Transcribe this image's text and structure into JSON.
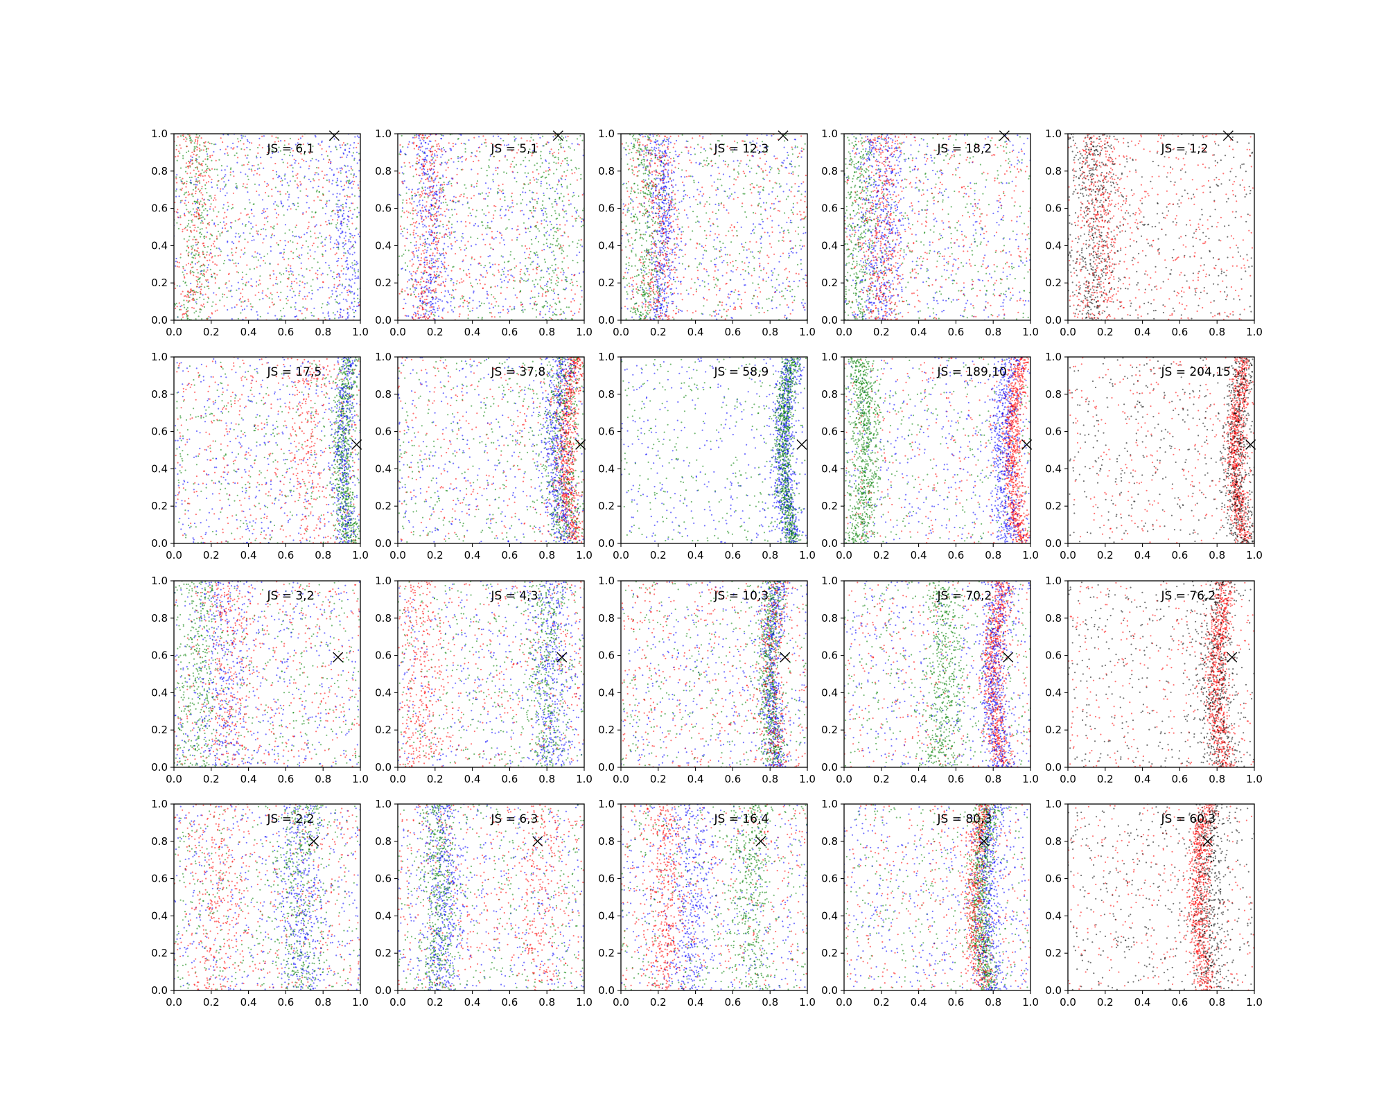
{
  "figure": {
    "colors": {
      "blue": "#0000ff",
      "green": "#008000",
      "red": "#ff0000",
      "black": "#000000",
      "background": "#ffffff"
    },
    "marker": "x"
  },
  "chart_data": {
    "type": "scatter",
    "layout": "4x5 grid of scatter panels",
    "xlim": [
      0,
      1
    ],
    "ylim": [
      0,
      1
    ],
    "x_ticks": [
      "0.0",
      "0.2",
      "0.4",
      "0.6",
      "0.8",
      "1.0"
    ],
    "y_ticks": [
      "0.0",
      "0.2",
      "0.4",
      "0.6",
      "0.8",
      "1.0"
    ],
    "grid": false,
    "legend": "none",
    "panels": [
      {
        "label": "JS = 6,1",
        "marker": [
          0.86,
          0.99
        ],
        "bands": [
          {
            "color": "blue",
            "center": 0.95,
            "spread": 0.05,
            "density": 0.25
          },
          {
            "color": "green",
            "center": 0.1,
            "spread": 0.05,
            "density": 0.25
          },
          {
            "color": "red",
            "center": 0.1,
            "spread": 0.06,
            "density": 0.25
          }
        ]
      },
      {
        "label": "JS = 5,1",
        "marker": [
          0.86,
          0.99
        ],
        "bands": [
          {
            "color": "blue",
            "center": 0.15,
            "spread": 0.05,
            "density": 0.4
          },
          {
            "color": "red",
            "center": 0.15,
            "spread": 0.05,
            "density": 0.35
          },
          {
            "color": "green",
            "center": 0.85,
            "spread": 0.07,
            "density": 0.2
          }
        ]
      },
      {
        "label": "JS = 12,3",
        "marker": [
          0.87,
          0.99
        ],
        "bands": [
          {
            "color": "blue",
            "center": 0.2,
            "spread": 0.04,
            "density": 0.5
          },
          {
            "color": "red",
            "center": 0.18,
            "spread": 0.05,
            "density": 0.35
          },
          {
            "color": "green",
            "center": 0.12,
            "spread": 0.05,
            "density": 0.4
          }
        ]
      },
      {
        "label": "JS = 18,2",
        "marker": [
          0.86,
          0.99
        ],
        "bands": [
          {
            "color": "blue",
            "center": 0.18,
            "spread": 0.06,
            "density": 0.5
          },
          {
            "color": "green",
            "center": 0.05,
            "spread": 0.06,
            "density": 0.45
          },
          {
            "color": "red",
            "center": 0.18,
            "spread": 0.06,
            "density": 0.4
          }
        ]
      },
      {
        "label": "JS = 1,2",
        "marker": [
          0.86,
          0.99
        ],
        "bands": [
          {
            "color": "black",
            "center": 0.12,
            "spread": 0.06,
            "density": 0.5
          },
          {
            "color": "red",
            "center": 0.15,
            "spread": 0.07,
            "density": 0.45
          }
        ]
      },
      {
        "label": "JS = 17,5",
        "marker": [
          0.98,
          0.53
        ],
        "bands": [
          {
            "color": "green",
            "center": 0.95,
            "spread": 0.03,
            "density": 0.7
          },
          {
            "color": "blue",
            "center": 0.94,
            "spread": 0.03,
            "density": 0.4
          },
          {
            "color": "red",
            "center": 0.75,
            "spread": 0.05,
            "density": 0.2
          }
        ]
      },
      {
        "label": "JS = 37,8",
        "marker": [
          0.98,
          0.53
        ],
        "bands": [
          {
            "color": "red",
            "center": 0.95,
            "spread": 0.03,
            "density": 0.8
          },
          {
            "color": "blue",
            "center": 0.9,
            "spread": 0.04,
            "density": 0.6
          },
          {
            "color": "green",
            "center": 0.9,
            "spread": 0.06,
            "density": 0.5
          }
        ]
      },
      {
        "label": "JS = 58,9",
        "marker": [
          0.97,
          0.53
        ],
        "bands": [
          {
            "color": "blue",
            "center": 0.92,
            "spread": 0.03,
            "density": 0.8
          },
          {
            "color": "green",
            "center": 0.92,
            "spread": 0.025,
            "density": 0.8
          }
        ]
      },
      {
        "label": "JS = 189,10",
        "marker": [
          0.98,
          0.53
        ],
        "bands": [
          {
            "color": "red",
            "center": 0.95,
            "spread": 0.025,
            "density": 0.9
          },
          {
            "color": "blue",
            "center": 0.9,
            "spread": 0.04,
            "density": 0.6
          },
          {
            "color": "green",
            "center": 0.07,
            "spread": 0.04,
            "density": 0.85
          }
        ]
      },
      {
        "label": "JS = 204,15",
        "marker": [
          0.98,
          0.53
        ],
        "bands": [
          {
            "color": "red",
            "center": 0.95,
            "spread": 0.025,
            "density": 0.9
          },
          {
            "color": "black",
            "center": 0.95,
            "spread": 0.04,
            "density": 0.6
          }
        ]
      },
      {
        "label": "JS = 3,2",
        "marker": [
          0.88,
          0.59
        ],
        "bands": [
          {
            "color": "green",
            "center": 0.12,
            "spread": 0.07,
            "density": 0.35
          },
          {
            "color": "blue",
            "center": 0.25,
            "spread": 0.07,
            "density": 0.3
          },
          {
            "color": "red",
            "center": 0.28,
            "spread": 0.06,
            "density": 0.25
          }
        ]
      },
      {
        "label": "JS = 4,3",
        "marker": [
          0.88,
          0.59
        ],
        "bands": [
          {
            "color": "blue",
            "center": 0.85,
            "spread": 0.05,
            "density": 0.4
          },
          {
            "color": "green",
            "center": 0.82,
            "spread": 0.05,
            "density": 0.35
          },
          {
            "color": "red",
            "center": 0.1,
            "spread": 0.06,
            "density": 0.3
          }
        ]
      },
      {
        "label": "JS = 10,3",
        "marker": [
          0.88,
          0.59
        ],
        "bands": [
          {
            "color": "blue",
            "center": 0.85,
            "spread": 0.03,
            "density": 0.6
          },
          {
            "color": "green",
            "center": 0.84,
            "spread": 0.03,
            "density": 0.6
          },
          {
            "color": "red",
            "center": 0.84,
            "spread": 0.04,
            "density": 0.3
          }
        ]
      },
      {
        "label": "JS = 70,2",
        "marker": [
          0.88,
          0.59
        ],
        "bands": [
          {
            "color": "red",
            "center": 0.85,
            "spread": 0.03,
            "density": 0.8
          },
          {
            "color": "blue",
            "center": 0.85,
            "spread": 0.04,
            "density": 0.6
          },
          {
            "color": "green",
            "center": 0.5,
            "spread": 0.05,
            "density": 0.55
          }
        ]
      },
      {
        "label": "JS = 76,2",
        "marker": [
          0.88,
          0.59
        ],
        "bands": [
          {
            "color": "red",
            "center": 0.85,
            "spread": 0.03,
            "density": 0.85
          },
          {
            "color": "black",
            "center": 0.82,
            "spread": 0.05,
            "density": 0.5
          }
        ]
      },
      {
        "label": "JS = 2,2",
        "marker": [
          0.75,
          0.8
        ],
        "bands": [
          {
            "color": "blue",
            "center": 0.7,
            "spread": 0.06,
            "density": 0.4
          },
          {
            "color": "green",
            "center": 0.7,
            "spread": 0.06,
            "density": 0.35
          },
          {
            "color": "red",
            "center": 0.2,
            "spread": 0.07,
            "density": 0.25
          }
        ]
      },
      {
        "label": "JS = 6,3",
        "marker": [
          0.75,
          0.8
        ],
        "bands": [
          {
            "color": "blue",
            "center": 0.22,
            "spread": 0.05,
            "density": 0.5
          },
          {
            "color": "green",
            "center": 0.2,
            "spread": 0.05,
            "density": 0.45
          },
          {
            "color": "red",
            "center": 0.78,
            "spread": 0.06,
            "density": 0.2
          }
        ]
      },
      {
        "label": "JS = 16,4",
        "marker": [
          0.75,
          0.8
        ],
        "bands": [
          {
            "color": "red",
            "center": 0.22,
            "spread": 0.05,
            "density": 0.45
          },
          {
            "color": "blue",
            "center": 0.35,
            "spread": 0.06,
            "density": 0.4
          },
          {
            "color": "green",
            "center": 0.72,
            "spread": 0.05,
            "density": 0.4
          }
        ]
      },
      {
        "label": "JS = 80,3",
        "marker": [
          0.75,
          0.8
        ],
        "bands": [
          {
            "color": "green",
            "center": 0.78,
            "spread": 0.03,
            "density": 0.8
          },
          {
            "color": "red",
            "center": 0.75,
            "spread": 0.03,
            "density": 0.6
          },
          {
            "color": "blue",
            "center": 0.8,
            "spread": 0.04,
            "density": 0.5
          }
        ]
      },
      {
        "label": "JS = 60,3",
        "marker": [
          0.75,
          0.8
        ],
        "bands": [
          {
            "color": "red",
            "center": 0.75,
            "spread": 0.03,
            "density": 0.85
          },
          {
            "color": "black",
            "center": 0.78,
            "spread": 0.05,
            "density": 0.5
          }
        ]
      }
    ]
  }
}
